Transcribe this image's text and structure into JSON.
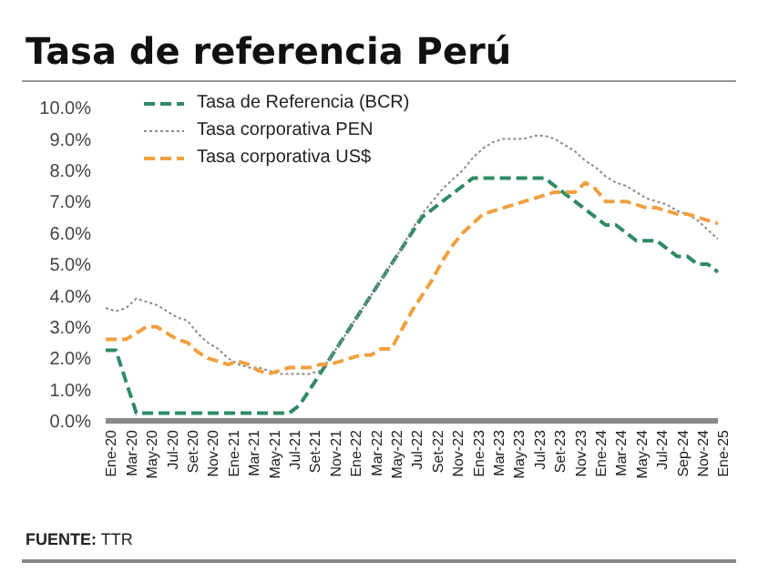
{
  "chart_data": {
    "type": "line",
    "title": "Tasa de referencia Perú",
    "categories": [
      "Ene-20",
      null,
      "Mar-20",
      null,
      "May-20",
      null,
      "Jul-20",
      null,
      "Set-20",
      null,
      "Nov-20",
      null,
      "Ene-21",
      null,
      "Mar-21",
      null,
      "May-21",
      null,
      "Jul-21",
      null,
      "Set-21",
      null,
      "Nov-21",
      null,
      "Ene-22",
      null,
      "Mar-22",
      null,
      "May-22",
      null,
      "Jul-22",
      null,
      "Set-22",
      null,
      "Nov-22",
      null,
      "Ene-23",
      null,
      "Mar-23",
      null,
      "May-23",
      null,
      "Jul-23",
      null,
      "Set-23",
      null,
      "Nov-23",
      null,
      "Ene-24",
      null,
      "Mar-24",
      null,
      "May-24",
      null,
      "Jul-24",
      null,
      "Sep-24",
      null,
      "Nov-24",
      null,
      "Ene-25"
    ],
    "series": [
      {
        "name": "Tasa de Referencia (BCR)",
        "color": "#2e8b63",
        "line_style": "dashed",
        "values": [
          2.25,
          2.25,
          1.25,
          0.25,
          0.25,
          0.25,
          0.25,
          0.25,
          0.25,
          0.25,
          0.25,
          0.25,
          0.25,
          0.25,
          0.25,
          0.25,
          0.25,
          0.25,
          0.25,
          0.5,
          1.0,
          1.5,
          2.0,
          2.5,
          3.0,
          3.5,
          4.0,
          4.5,
          5.0,
          5.5,
          6.0,
          6.5,
          6.75,
          7.0,
          7.25,
          7.5,
          7.75,
          7.75,
          7.75,
          7.75,
          7.75,
          7.75,
          7.75,
          7.75,
          7.5,
          7.25,
          7.0,
          6.75,
          6.5,
          6.25,
          6.25,
          6.0,
          5.75,
          5.75,
          5.75,
          5.5,
          5.25,
          5.25,
          5.0,
          5.0,
          4.75
        ]
      },
      {
        "name": "Tasa corporativa PEN",
        "color": "#8a8a8a",
        "line_style": "dotted",
        "values": [
          3.6,
          3.5,
          3.6,
          3.9,
          3.8,
          3.7,
          3.5,
          3.3,
          3.2,
          2.8,
          2.5,
          2.3,
          2.0,
          1.8,
          1.7,
          1.7,
          1.6,
          1.5,
          1.5,
          1.5,
          1.5,
          1.6,
          2.0,
          2.5,
          3.0,
          3.5,
          4.0,
          4.5,
          5.0,
          5.5,
          6.1,
          6.6,
          7.0,
          7.4,
          7.7,
          8.0,
          8.4,
          8.7,
          8.9,
          9.0,
          9.0,
          9.0,
          9.1,
          9.1,
          9.0,
          8.8,
          8.6,
          8.3,
          8.1,
          7.8,
          7.6,
          7.5,
          7.3,
          7.1,
          7.0,
          6.9,
          6.7,
          6.6,
          6.4,
          6.1,
          5.8
        ]
      },
      {
        "name": "Tasa corporativa US$",
        "color": "#f0a040",
        "line_style": "dashed",
        "values": [
          2.6,
          2.6,
          2.6,
          2.8,
          3.0,
          3.0,
          2.8,
          2.6,
          2.5,
          2.2,
          2.0,
          1.9,
          1.8,
          1.9,
          1.8,
          1.6,
          1.5,
          1.6,
          1.7,
          1.7,
          1.7,
          1.8,
          1.8,
          1.9,
          2.0,
          2.1,
          2.1,
          2.3,
          2.3,
          2.9,
          3.5,
          4.0,
          4.5,
          5.1,
          5.6,
          6.0,
          6.3,
          6.6,
          6.7,
          6.8,
          6.9,
          7.0,
          7.1,
          7.2,
          7.3,
          7.3,
          7.3,
          7.6,
          7.4,
          7.0,
          7.0,
          7.0,
          6.9,
          6.8,
          6.8,
          6.7,
          6.6,
          6.6,
          6.5,
          6.4,
          6.3
        ]
      }
    ],
    "ylim": [
      0,
      10
    ],
    "yticks": [
      {
        "value": 0,
        "label": "0.0%"
      },
      {
        "value": 1,
        "label": "1.0%"
      },
      {
        "value": 2,
        "label": "2.0%"
      },
      {
        "value": 3,
        "label": "3.0%"
      },
      {
        "value": 4,
        "label": "4.0%"
      },
      {
        "value": 5,
        "label": "5.0%"
      },
      {
        "value": 6,
        "label": "6.0%"
      },
      {
        "value": 7,
        "label": "7.0%"
      },
      {
        "value": 8,
        "label": "8.0%"
      },
      {
        "value": 9,
        "label": "9.0%"
      },
      {
        "value": 10,
        "label": "10.0%"
      }
    ],
    "grid": false,
    "legend": "top left",
    "marker": "none",
    "annotations": [
      "FUENTE: TTR"
    ]
  }
}
